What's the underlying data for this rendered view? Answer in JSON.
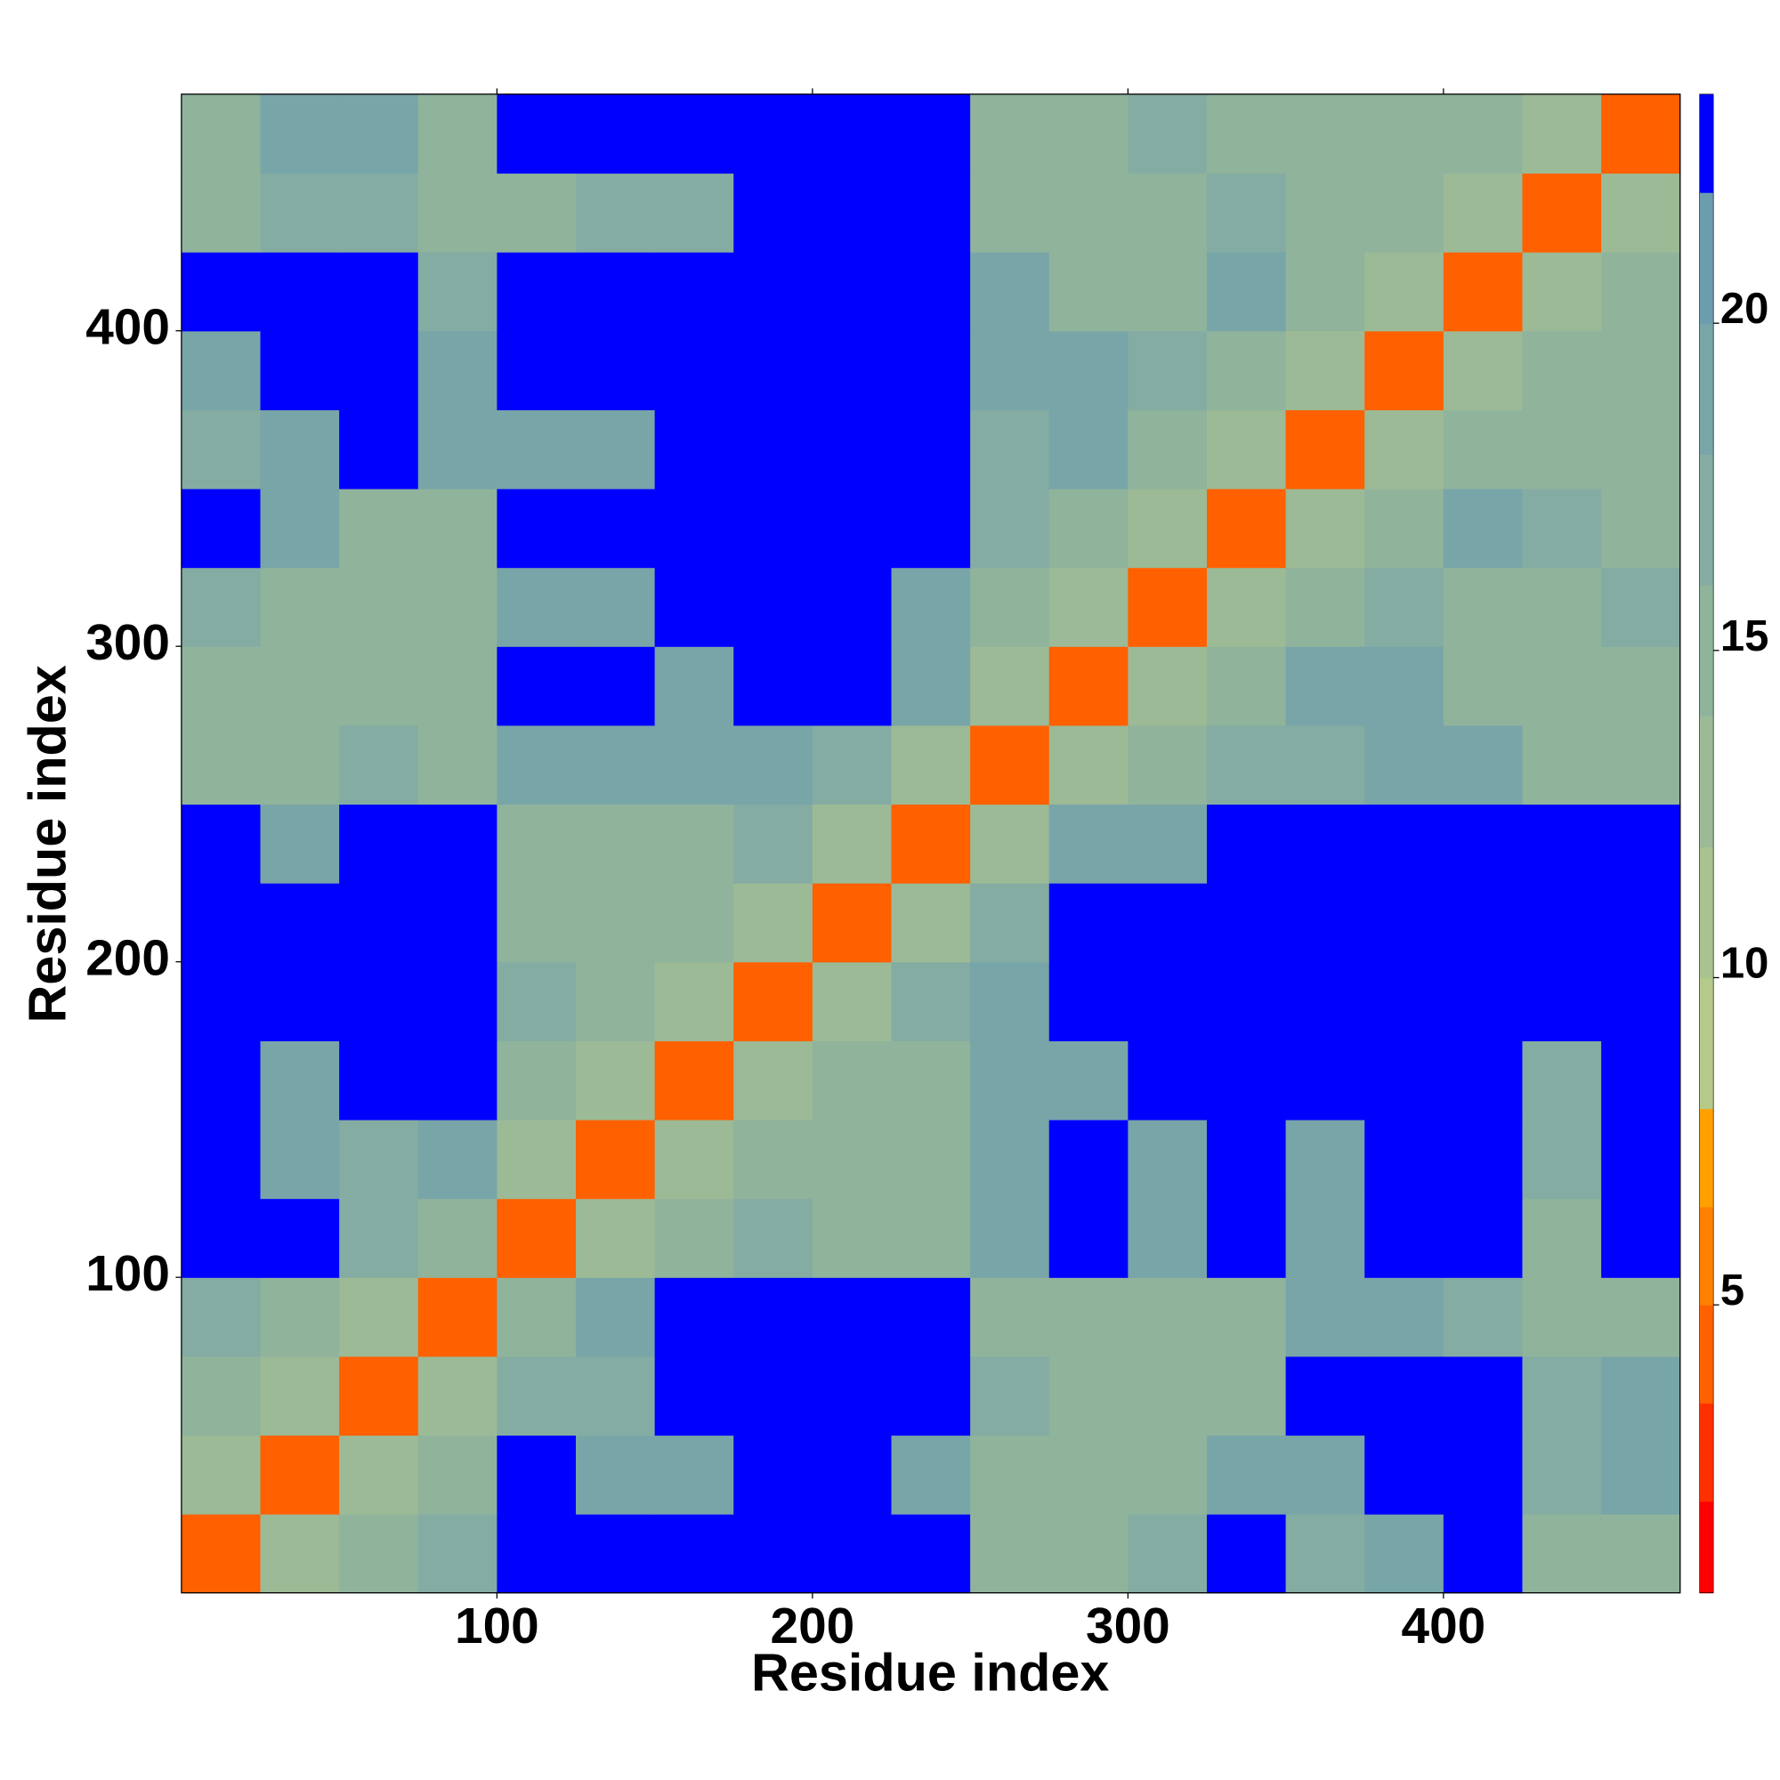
{
  "chart_data": {
    "type": "heatmap",
    "xlabel": "Residue index",
    "ylabel": "Residue index",
    "x": [
      12.5,
      37.5,
      62.5,
      87.5,
      112.5,
      137.5,
      162.5,
      187.5,
      212.5,
      237.5,
      262.5,
      287.5,
      312.5,
      337.5,
      362.5,
      387.5,
      412.5,
      437.5,
      462.5
    ],
    "y": [
      12.5,
      37.5,
      62.5,
      87.5,
      112.5,
      137.5,
      162.5,
      187.5,
      212.5,
      237.5,
      262.5,
      287.5,
      312.5,
      337.5,
      362.5,
      387.5,
      412.5,
      437.5,
      462.5
    ],
    "values": [
      [
        4,
        12,
        14,
        17,
        23,
        23,
        23,
        23,
        23,
        23,
        14,
        14,
        17,
        23,
        17,
        18,
        23,
        14,
        14
      ],
      [
        12,
        4,
        12,
        14,
        23,
        18,
        18,
        23,
        23,
        18,
        14,
        14,
        14,
        18,
        18,
        23,
        23,
        17,
        18
      ],
      [
        14,
        12,
        4,
        12,
        17,
        17,
        23,
        23,
        23,
        23,
        17,
        14,
        14,
        14,
        23,
        23,
        23,
        17,
        18
      ],
      [
        17,
        14,
        12,
        4,
        14,
        18,
        23,
        23,
        23,
        23,
        14,
        14,
        14,
        14,
        18,
        18,
        17,
        14,
        14
      ],
      [
        23,
        23,
        17,
        14,
        4,
        12,
        14,
        17,
        14,
        14,
        18,
        23,
        18,
        23,
        18,
        23,
        23,
        14,
        23
      ],
      [
        23,
        18,
        17,
        18,
        12,
        4,
        12,
        14,
        14,
        14,
        18,
        23,
        18,
        23,
        18,
        23,
        23,
        17,
        23
      ],
      [
        23,
        18,
        23,
        23,
        14,
        12,
        4,
        12,
        14,
        14,
        18,
        18,
        23,
        23,
        23,
        23,
        23,
        17,
        23
      ],
      [
        23,
        23,
        23,
        23,
        17,
        14,
        12,
        4,
        12,
        17,
        18,
        23,
        23,
        23,
        23,
        23,
        23,
        23,
        23
      ],
      [
        23,
        23,
        23,
        23,
        14,
        14,
        14,
        12,
        4,
        12,
        17,
        23,
        23,
        23,
        23,
        23,
        23,
        23,
        23
      ],
      [
        23,
        18,
        23,
        23,
        14,
        14,
        14,
        17,
        12,
        4,
        12,
        18,
        18,
        23,
        23,
        23,
        23,
        23,
        23
      ],
      [
        14,
        14,
        17,
        14,
        18,
        18,
        18,
        18,
        17,
        12,
        4,
        12,
        14,
        17,
        17,
        18,
        18,
        14,
        14
      ],
      [
        14,
        14,
        14,
        14,
        23,
        23,
        18,
        23,
        23,
        18,
        12,
        4,
        12,
        14,
        18,
        18,
        14,
        14,
        14
      ],
      [
        17,
        14,
        14,
        14,
        18,
        18,
        23,
        23,
        23,
        18,
        14,
        12,
        4,
        12,
        14,
        17,
        14,
        14,
        17
      ],
      [
        23,
        18,
        14,
        14,
        23,
        23,
        23,
        23,
        23,
        23,
        17,
        14,
        12,
        4,
        12,
        14,
        18,
        17,
        14
      ],
      [
        17,
        18,
        23,
        18,
        18,
        18,
        23,
        23,
        23,
        23,
        17,
        18,
        14,
        12,
        4,
        12,
        14,
        14,
        14
      ],
      [
        18,
        23,
        23,
        18,
        23,
        23,
        23,
        23,
        23,
        23,
        18,
        18,
        17,
        14,
        12,
        4,
        12,
        14,
        14
      ],
      [
        23,
        23,
        23,
        17,
        23,
        23,
        23,
        23,
        23,
        23,
        18,
        14,
        14,
        18,
        14,
        12,
        4,
        12,
        14
      ],
      [
        14,
        17,
        17,
        14,
        14,
        17,
        17,
        23,
        23,
        23,
        14,
        14,
        14,
        17,
        14,
        14,
        12,
        4,
        12
      ],
      [
        14,
        18,
        18,
        14,
        23,
        23,
        23,
        23,
        23,
        23,
        14,
        14,
        17,
        14,
        14,
        14,
        14,
        12,
        4
      ]
    ],
    "xlim": [
      0,
      475
    ],
    "ylim": [
      0,
      475
    ],
    "xticks": [
      100,
      200,
      300,
      400
    ],
    "yticks": [
      100,
      200,
      300,
      400
    ],
    "levels": [
      0.6,
      2,
      3.5,
      5,
      6.5,
      8,
      10,
      12,
      14,
      16,
      18,
      20,
      22,
      23.5
    ],
    "colors": [
      "#ff0000",
      "#ff3000",
      "#ff6000",
      "#ff8000",
      "#ffa000",
      "#b5c98a",
      "#a8c290",
      "#9cba96",
      "#90b39c",
      "#84aca2",
      "#78a5a8",
      "#6c9dae",
      "#0000ff"
    ],
    "colorbar_lim": [
      0.6,
      23.5
    ],
    "colorbar_ticks": [
      5,
      10,
      15,
      20
    ]
  }
}
